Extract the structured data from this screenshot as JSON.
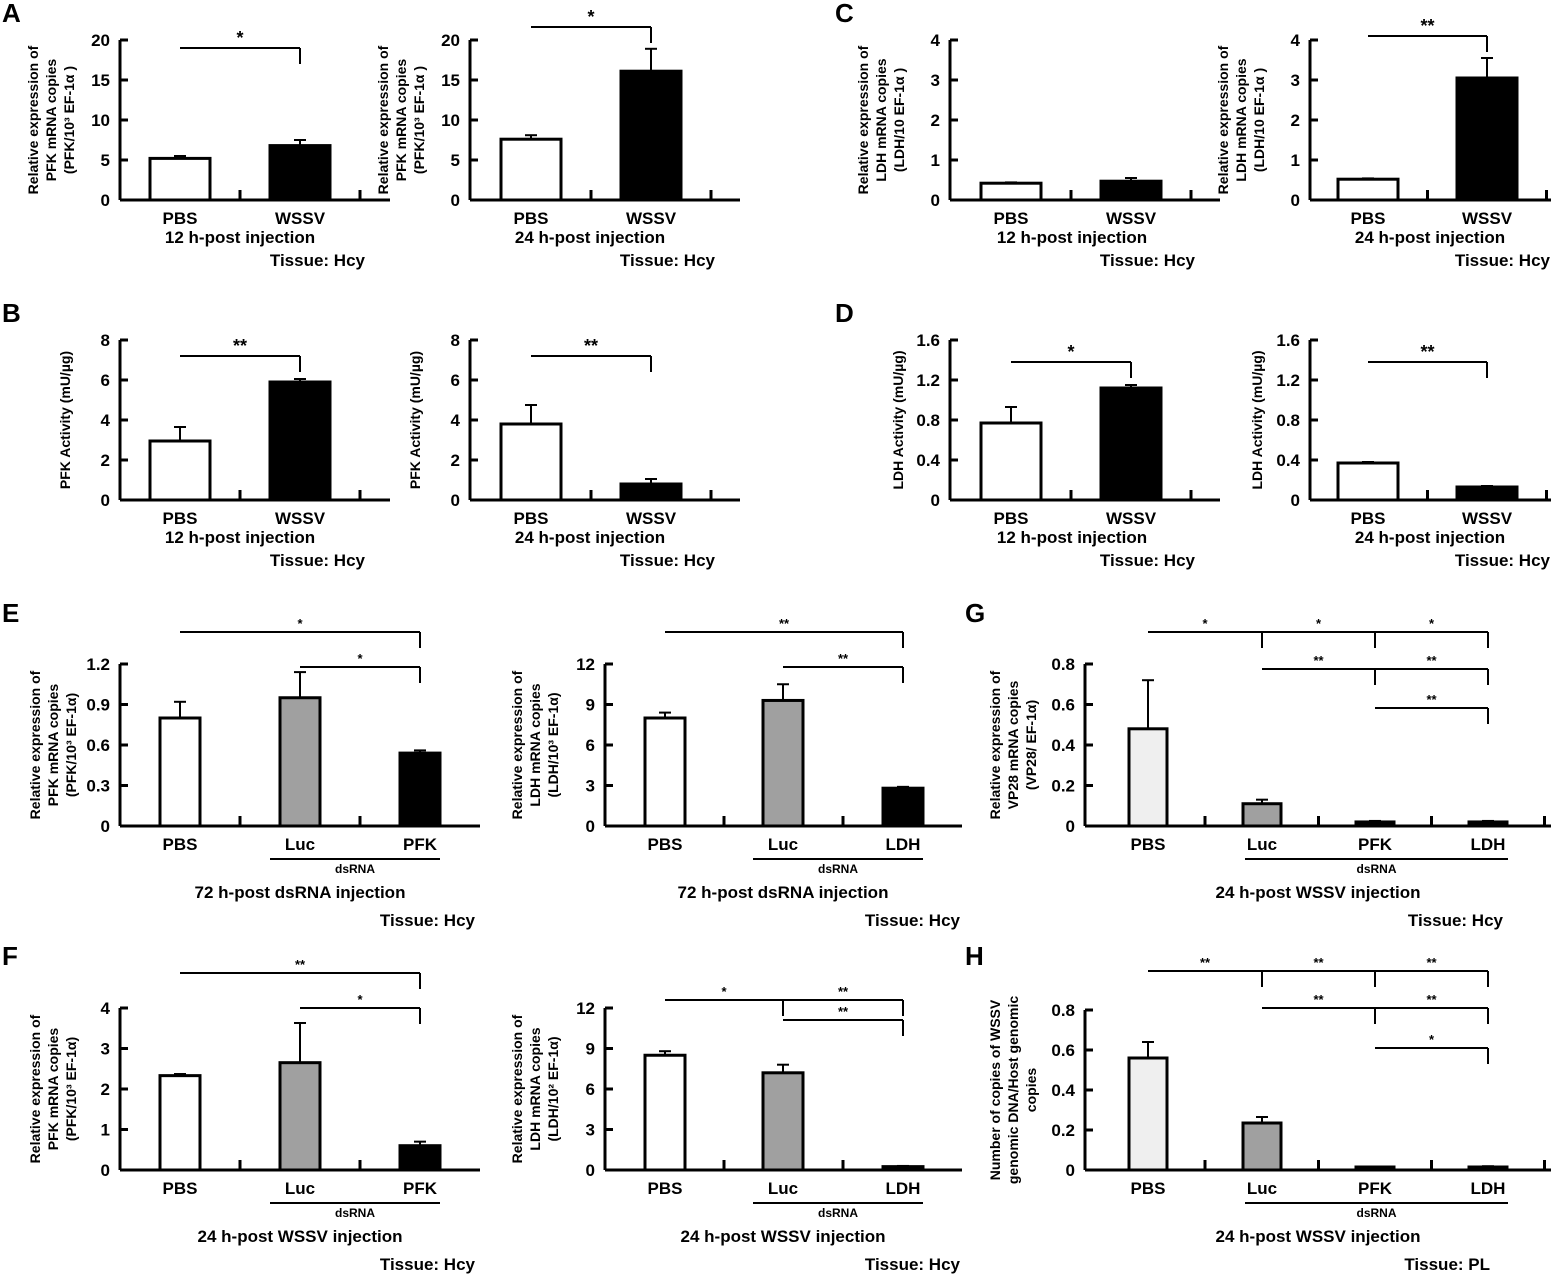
{
  "colors": {
    "white": "#ffffff",
    "black": "#000000",
    "gray": "#a0a0a0",
    "light": "#efefef"
  },
  "chart_data": [
    {
      "panel": "A",
      "type": "bar",
      "ylabel": [
        "Relative expression of",
        "PFK mRNA copies",
        "(PFK/10³ EF-1α )"
      ],
      "ylim": [
        0,
        20
      ],
      "yticks": [
        "0",
        "5",
        "10",
        "15",
        "20"
      ],
      "categories": [
        "PBS",
        "WSSV"
      ],
      "values": [
        5.2,
        6.8
      ],
      "errors": [
        0.3,
        0.7
      ],
      "fills": [
        "white",
        "black"
      ],
      "brackets": [
        {
          "from": 0,
          "to": 1,
          "level": 0,
          "label": "*"
        }
      ],
      "xlabel": "12 h-post injection",
      "tissue": "Tissue: Hcy"
    },
    {
      "panel": "",
      "type": "bar",
      "ylabel": [
        "Relative expression of",
        "PFK mRNA copies",
        "(PFK/10³ EF-1α )"
      ],
      "ylim": [
        0,
        20
      ],
      "yticks": [
        "0",
        "5",
        "10",
        "15",
        "20"
      ],
      "categories": [
        "PBS",
        "WSSV"
      ],
      "values": [
        7.6,
        16.1
      ],
      "errors": [
        0.5,
        2.8
      ],
      "fills": [
        "white",
        "black"
      ],
      "brackets": [
        {
          "from": 0,
          "to": 1,
          "level": 0,
          "label": "*"
        }
      ],
      "xlabel": "24 h-post injection",
      "tissue": "Tissue: Hcy"
    },
    {
      "panel": "C",
      "type": "bar",
      "ylabel": [
        "Relative expression of",
        "LDH mRNA copies",
        "(LDH/10 EF-1α )"
      ],
      "ylim": [
        0,
        4
      ],
      "yticks": [
        "0",
        "1",
        "2",
        "3",
        "4"
      ],
      "categories": [
        "PBS",
        "WSSV"
      ],
      "values": [
        0.42,
        0.47
      ],
      "errors": [
        0.02,
        0.08
      ],
      "fills": [
        "white",
        "black"
      ],
      "brackets": [],
      "xlabel": "12 h-post injection",
      "tissue": "Tissue: Hcy"
    },
    {
      "panel": "",
      "type": "bar",
      "ylabel": [
        "Relative expression of",
        "LDH mRNA copies",
        "(LDH/10 EF-1α )"
      ],
      "ylim": [
        0,
        4
      ],
      "yticks": [
        "0",
        "1",
        "2",
        "3",
        "4"
      ],
      "categories": [
        "PBS",
        "WSSV"
      ],
      "values": [
        0.52,
        3.05
      ],
      "errors": [
        0.02,
        0.5
      ],
      "fills": [
        "white",
        "black"
      ],
      "brackets": [
        {
          "from": 0,
          "to": 1,
          "level": 0,
          "label": "**"
        }
      ],
      "xlabel": "24 h-post injection",
      "tissue": "Tissue: Hcy"
    },
    {
      "panel": "B",
      "type": "bar",
      "ylabel": [
        "PFK Activity (mU/µg)"
      ],
      "ylim": [
        0,
        8
      ],
      "yticks": [
        "0",
        "2",
        "4",
        "6",
        "8"
      ],
      "categories": [
        "PBS",
        "WSSV"
      ],
      "values": [
        2.95,
        5.9
      ],
      "errors": [
        0.7,
        0.15
      ],
      "fills": [
        "white",
        "black"
      ],
      "brackets": [
        {
          "from": 0,
          "to": 1,
          "level": 0,
          "label": "**"
        }
      ],
      "xlabel": "12 h-post injection",
      "tissue": "Tissue: Hcy"
    },
    {
      "panel": "",
      "type": "bar",
      "ylabel": [
        "PFK Activity (mU/µg)"
      ],
      "ylim": [
        0,
        8
      ],
      "yticks": [
        "0",
        "2",
        "4",
        "6",
        "8"
      ],
      "categories": [
        "PBS",
        "WSSV"
      ],
      "values": [
        3.8,
        0.8
      ],
      "errors": [
        0.95,
        0.25
      ],
      "fills": [
        "white",
        "black"
      ],
      "brackets": [
        {
          "from": 0,
          "to": 1,
          "level": 0,
          "label": "**"
        }
      ],
      "xlabel": "24 h-post injection",
      "tissue": "Tissue: Hcy"
    },
    {
      "panel": "D",
      "type": "bar",
      "ylabel": [
        "LDH Activity (mU/µg)"
      ],
      "ylim": [
        0,
        1.6
      ],
      "yticks": [
        "0",
        "0.4",
        "0.8",
        "1.2",
        "1.6"
      ],
      "categories": [
        "PBS",
        "WSSV"
      ],
      "values": [
        0.77,
        1.12
      ],
      "errors": [
        0.16,
        0.03
      ],
      "fills": [
        "white",
        "black"
      ],
      "brackets": [
        {
          "from": 0,
          "to": 1,
          "level": 0,
          "label": "*"
        }
      ],
      "xlabel": "12 h-post injection",
      "tissue": "Tissue: Hcy"
    },
    {
      "panel": "",
      "type": "bar",
      "ylabel": [
        "LDH Activity (mU/µg)"
      ],
      "ylim": [
        0,
        1.6
      ],
      "yticks": [
        "0",
        "0.4",
        "0.8",
        "1.2",
        "1.6"
      ],
      "categories": [
        "PBS",
        "WSSV"
      ],
      "values": [
        0.37,
        0.13
      ],
      "errors": [
        0.01,
        0.01
      ],
      "fills": [
        "white",
        "black"
      ],
      "brackets": [
        {
          "from": 0,
          "to": 1,
          "level": 0,
          "label": "**"
        }
      ],
      "xlabel": "24 h-post injection",
      "tissue": "Tissue: Hcy"
    },
    {
      "panel": "E",
      "type": "bar",
      "ylabel": [
        "Relative expression of",
        "PFK mRNA copies",
        "(PFK/10³ EF-1α)"
      ],
      "ylim": [
        0,
        1.2
      ],
      "yticks": [
        "0",
        "0.3",
        "0.6",
        "0.9",
        "1.2"
      ],
      "categories": [
        "PBS",
        "Luc",
        "PFK"
      ],
      "values": [
        0.8,
        0.95,
        0.54
      ],
      "errors": [
        0.12,
        0.19,
        0.02
      ],
      "fills": [
        "white",
        "gray",
        "black"
      ],
      "brackets": [
        {
          "from": 0,
          "to": 2,
          "level": 0,
          "label": "*"
        },
        {
          "from": 1,
          "to": 2,
          "level": 1,
          "label": "*"
        }
      ],
      "group_label": "dsRNA",
      "xlabel": "72 h-post dsRNA injection",
      "tissue": "Tissue: Hcy"
    },
    {
      "panel": "",
      "type": "bar",
      "ylabel": [
        "Relative expression of",
        "LDH mRNA copies",
        "(LDH/10³ EF-1α)"
      ],
      "ylim": [
        0,
        12
      ],
      "yticks": [
        "0",
        "3",
        "6",
        "9",
        "12"
      ],
      "categories": [
        "PBS",
        "Luc",
        "LDH"
      ],
      "values": [
        8.0,
        9.3,
        2.8
      ],
      "errors": [
        0.4,
        1.2,
        0.1
      ],
      "fills": [
        "white",
        "gray",
        "black"
      ],
      "brackets": [
        {
          "from": 0,
          "to": 2,
          "level": 0,
          "label": "**"
        },
        {
          "from": 1,
          "to": 2,
          "level": 1,
          "label": "**"
        }
      ],
      "group_label": "dsRNA",
      "xlabel": "72 h-post dsRNA injection",
      "tissue": "Tissue: Hcy"
    },
    {
      "panel": "G",
      "type": "bar",
      "ylabel": [
        "Relative expression of",
        "VP28 mRNA copies",
        "(VP28/ EF-1α)"
      ],
      "ylim": [
        0,
        0.8
      ],
      "yticks": [
        "0",
        "0.2",
        "0.4",
        "0.6",
        "0.8"
      ],
      "categories": [
        "PBS",
        "Luc",
        "PFK",
        "LDH"
      ],
      "values": [
        0.48,
        0.11,
        0.02,
        0.02
      ],
      "errors": [
        0.24,
        0.02,
        0.005,
        0.005
      ],
      "fills": [
        "light",
        "gray",
        "black",
        "black"
      ],
      "brackets": [
        {
          "from": 0,
          "to": 1,
          "level": 0,
          "label": "*"
        },
        {
          "from": 1,
          "to": 2,
          "level": 0,
          "label": "*"
        },
        {
          "from": 2,
          "to": 3,
          "level": 0,
          "label": "*"
        },
        {
          "from": 1,
          "to": 2,
          "level": 1,
          "label": "**"
        },
        {
          "from": 2,
          "to": 3,
          "level": 1,
          "label": "**"
        },
        {
          "from": 2,
          "to": 3,
          "level": 2,
          "label": "**"
        }
      ],
      "group_label": "dsRNA",
      "xlabel": "24 h-post WSSV injection",
      "tissue": "Tissue: Hcy"
    },
    {
      "panel": "F",
      "type": "bar",
      "ylabel": [
        "Relative expression of",
        "PFK mRNA copies",
        "(PFK/10³ EF-1α)"
      ],
      "ylim": [
        0,
        4
      ],
      "yticks": [
        "0",
        "1",
        "2",
        "3",
        "4"
      ],
      "categories": [
        "PBS",
        "Luc",
        "PFK"
      ],
      "values": [
        2.33,
        2.65,
        0.6
      ],
      "errors": [
        0.04,
        0.98,
        0.1
      ],
      "fills": [
        "white",
        "gray",
        "black"
      ],
      "brackets": [
        {
          "from": 0,
          "to": 2,
          "level": 0,
          "label": "**"
        },
        {
          "from": 1,
          "to": 2,
          "level": 1,
          "label": "*"
        }
      ],
      "group_label": "dsRNA",
      "xlabel": "24 h-post WSSV injection",
      "tissue": "Tissue: Hcy"
    },
    {
      "panel": "",
      "type": "bar",
      "ylabel": [
        "Relative expression of",
        "LDH mRNA copies",
        "(LDH/10² EF-1α)"
      ],
      "ylim": [
        0,
        12
      ],
      "yticks": [
        "0",
        "3",
        "6",
        "9",
        "12"
      ],
      "categories": [
        "PBS",
        "Luc",
        "LDH"
      ],
      "values": [
        8.5,
        7.2,
        0.25
      ],
      "errors": [
        0.3,
        0.6,
        0.05
      ],
      "fills": [
        "white",
        "gray",
        "black"
      ],
      "brackets": [
        {
          "from": 0,
          "to": 1,
          "level": 0,
          "label": "*"
        },
        {
          "from": 1,
          "to": 2,
          "level": 0,
          "label": "**"
        },
        {
          "from": 1,
          "to": 2,
          "level": 1,
          "label": "**"
        }
      ],
      "group_label": "dsRNA",
      "xlabel": "24 h-post WSSV injection",
      "tissue": "Tissue: Hcy"
    },
    {
      "panel": "H",
      "type": "bar",
      "ylabel": [
        "Number of copies of WSSV",
        "genomic DNA/Host genomic",
        "copies"
      ],
      "ylim": [
        0,
        0.8
      ],
      "yticks": [
        "0",
        "0.2",
        "0.4",
        "0.6",
        "0.8"
      ],
      "categories": [
        "PBS",
        "Luc",
        "PFK",
        "LDH"
      ],
      "values": [
        0.56,
        0.235,
        0.01,
        0.015
      ],
      "errors": [
        0.08,
        0.03,
        0.004,
        0.004
      ],
      "fills": [
        "light",
        "gray",
        "black",
        "black"
      ],
      "brackets": [
        {
          "from": 0,
          "to": 1,
          "level": 0,
          "label": "**"
        },
        {
          "from": 1,
          "to": 2,
          "level": 0,
          "label": "**"
        },
        {
          "from": 2,
          "to": 3,
          "level": 0,
          "label": "**"
        },
        {
          "from": 1,
          "to": 2,
          "level": 1,
          "label": "**"
        },
        {
          "from": 2,
          "to": 3,
          "level": 1,
          "label": "**"
        },
        {
          "from": 2,
          "to": 3,
          "level": 2,
          "label": "*"
        }
      ],
      "group_label": "dsRNA",
      "xlabel": "24 h-post WSSV injection",
      "tissue": "Tissue: PL"
    }
  ]
}
